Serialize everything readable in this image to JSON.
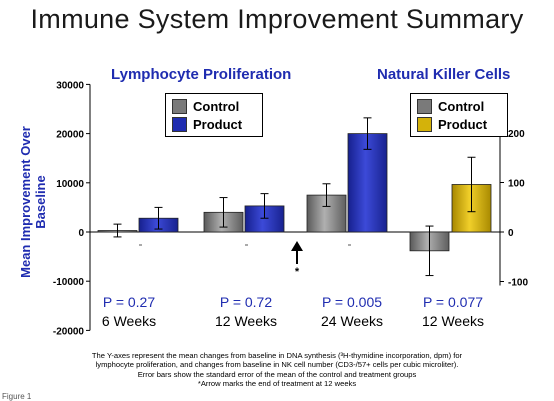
{
  "title": "Immune System Improvement Summary",
  "panels": {
    "left_title": "Lymphocyte Proliferation",
    "right_title": "Natural Killer Cells"
  },
  "ylabel": "Mean Improvement Over Baseline",
  "legend_left": [
    {
      "label": "Control",
      "color": "#7a7a7a"
    },
    {
      "label": "Product",
      "color": "#1f2cb0"
    }
  ],
  "legend_right": [
    {
      "label": "Control",
      "color": "#7a7a7a"
    },
    {
      "label": "Product",
      "color": "#d4b20a"
    }
  ],
  "groups": [
    {
      "p": "P = 0.27",
      "time": "6 Weeks"
    },
    {
      "p": "P = 0.72",
      "time": "12 Weeks"
    },
    {
      "p": "P = 0.005",
      "time": "24 Weeks"
    },
    {
      "p": "P = 0.077",
      "time": "12 Weeks"
    }
  ],
  "arrow_label": "*",
  "caption": [
    "The Y-axes represent the mean changes from baseline in DNA synthesis (³H-thymidine incorporation, dpm) for",
    "lymphocyte proliferation, and changes from baseline in NK cell number (CD3-/57+ cells per cubic microliter).",
    "Error bars show the standard error of the mean of the control and treatment groups",
    "*Arrow marks the end of treatment at 12 weeks"
  ],
  "figure_label": "Figure 1",
  "chart_data": [
    {
      "type": "bar",
      "title": "Lymphocyte Proliferation",
      "ylabel": "Mean Improvement Over Baseline",
      "categories": [
        "6 Weeks",
        "12 Weeks",
        "24 Weeks"
      ],
      "ylim": [
        -20000,
        30000
      ],
      "yticks": [
        "30000",
        "20000",
        "10000",
        "0",
        "-10000",
        "-20000"
      ],
      "series": [
        {
          "name": "Control",
          "color": "#7a7a7a",
          "values": [
            300,
            4000,
            7500
          ],
          "errors": [
            1300,
            3000,
            2300
          ]
        },
        {
          "name": "Product",
          "color": "#1f2cb0",
          "values": [
            2800,
            5300,
            20000
          ],
          "errors": [
            2200,
            2500,
            3200
          ]
        }
      ],
      "p_values": [
        "P = 0.27",
        "P = 0.72",
        "P = 0.005"
      ]
    },
    {
      "type": "bar",
      "title": "Natural Killer Cells",
      "categories": [
        "12 Weeks"
      ],
      "ylim": [
        -100,
        200
      ],
      "yticks": [
        "200",
        "100",
        "0",
        "-100"
      ],
      "series": [
        {
          "name": "Control",
          "color": "#7a7a7a",
          "values": [
            -38
          ],
          "errors": [
            50
          ]
        },
        {
          "name": "Product",
          "color": "#d4b20a",
          "values": [
            96
          ],
          "errors": [
            55
          ]
        }
      ],
      "p_values": [
        "P = 0.077"
      ]
    }
  ]
}
